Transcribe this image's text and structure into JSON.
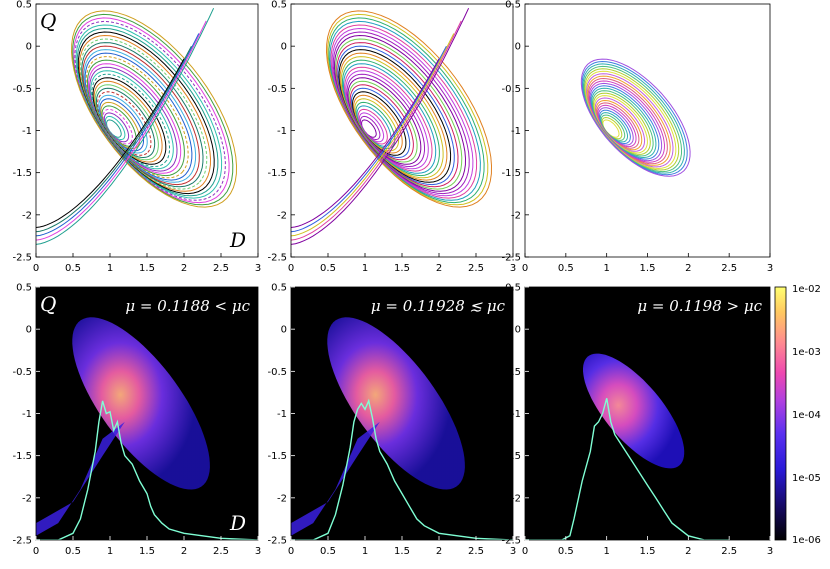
{
  "chart_data": {
    "type": "line",
    "description_axes": "Six panel grid of phase-plane plots, Q versus D",
    "panels": [
      {
        "id": "top-left",
        "row": 0,
        "col": 0,
        "kind": "orbits",
        "xlim": [
          0,
          3
        ],
        "ylim": [
          -2.5,
          0.5
        ],
        "ylabel": "Q",
        "xlabel": "D"
      },
      {
        "id": "top-middle",
        "row": 0,
        "col": 1,
        "kind": "orbits",
        "xlim": [
          0,
          3
        ],
        "ylim": [
          -2.5,
          0.5
        ]
      },
      {
        "id": "top-right",
        "row": 0,
        "col": 2,
        "kind": "orbits",
        "xlim": [
          0,
          3
        ],
        "ylim": [
          -2.5,
          0.5
        ]
      },
      {
        "id": "bottom-left",
        "row": 1,
        "col": 0,
        "kind": "density",
        "xlim": [
          0,
          3
        ],
        "ylim": [
          -2.5,
          0.5
        ],
        "ylabel": "Q",
        "xlabel": "D",
        "annotation": "μ = 0.1188 < μc"
      },
      {
        "id": "bottom-middle",
        "row": 1,
        "col": 1,
        "kind": "density",
        "xlim": [
          0,
          3
        ],
        "ylim": [
          -2.5,
          0.5
        ],
        "annotation": "μ = 0.11928 ≲ μc"
      },
      {
        "id": "bottom-right",
        "row": 1,
        "col": 2,
        "kind": "density",
        "xlim": [
          0,
          3
        ],
        "ylim": [
          -2.5,
          0.5
        ],
        "annotation": "μ = 0.1198 > μc"
      }
    ],
    "x_ticks": [
      "0",
      "0.5",
      "1",
      "1.5",
      "2",
      "2.5",
      "3"
    ],
    "x_tick_values": [
      0,
      0.5,
      1,
      1.5,
      2,
      2.5,
      3
    ],
    "y_ticks": [
      "0.5",
      "0",
      "-0.5",
      "-1",
      "-1.5",
      "-2",
      "-2.5"
    ],
    "y_tick_values": [
      0.5,
      0,
      -0.5,
      -1,
      -1.5,
      -2,
      -2.5
    ],
    "colorbar": {
      "scale": "log",
      "labels": [
        "1e-02",
        "1e-03",
        "1e-04",
        "1e-05",
        "1e-06"
      ],
      "range": [
        1e-06,
        0.01
      ],
      "colors": [
        "#000000",
        "#1a0a6b",
        "#3a22e6",
        "#8a3ef0",
        "#e040c8",
        "#ff7aa0",
        "#ffc060",
        "#ffff60"
      ]
    },
    "distribution_curves": [
      {
        "panel": "bottom-left",
        "color": "#7fffd4",
        "x": [
          0.0,
          0.3,
          0.5,
          0.6,
          0.7,
          0.8,
          0.85,
          0.9,
          0.95,
          1.0,
          1.05,
          1.1,
          1.15,
          1.2,
          1.3,
          1.4,
          1.5,
          1.55,
          1.6,
          1.7,
          1.8,
          2.0,
          2.5,
          3.0
        ],
        "y": [
          -2.5,
          -2.5,
          -2.42,
          -2.25,
          -1.9,
          -1.45,
          -1.1,
          -0.85,
          -1.0,
          -0.98,
          -1.2,
          -1.1,
          -1.35,
          -1.5,
          -1.6,
          -1.8,
          -1.95,
          -2.1,
          -2.2,
          -2.3,
          -2.37,
          -2.42,
          -2.48,
          -2.5
        ]
      },
      {
        "panel": "bottom-middle",
        "color": "#7fffd4",
        "x": [
          0.0,
          0.3,
          0.5,
          0.6,
          0.7,
          0.8,
          0.85,
          0.9,
          0.95,
          1.0,
          1.05,
          1.1,
          1.15,
          1.2,
          1.3,
          1.4,
          1.5,
          1.6,
          1.7,
          1.8,
          2.0,
          2.5,
          3.0
        ],
        "y": [
          -2.5,
          -2.5,
          -2.42,
          -2.2,
          -1.85,
          -1.4,
          -1.1,
          -0.95,
          -0.88,
          -0.95,
          -0.85,
          -1.05,
          -1.3,
          -1.45,
          -1.6,
          -1.8,
          -1.95,
          -2.1,
          -2.25,
          -2.33,
          -2.42,
          -2.48,
          -2.5
        ]
      },
      {
        "panel": "bottom-right",
        "color": "#7fffd4",
        "x": [
          0.0,
          0.45,
          0.55,
          0.6,
          0.7,
          0.8,
          0.85,
          0.9,
          0.95,
          1.0,
          1.05,
          1.1,
          1.2,
          1.3,
          1.4,
          1.5,
          1.6,
          1.7,
          1.8,
          2.0,
          2.2,
          2.5
        ],
        "y": [
          -2.5,
          -2.5,
          -2.45,
          -2.25,
          -1.8,
          -1.45,
          -1.15,
          -1.1,
          -1.0,
          -0.82,
          -1.1,
          -1.25,
          -1.4,
          -1.55,
          -1.7,
          -1.85,
          -2.0,
          -2.15,
          -2.3,
          -2.45,
          -2.5,
          -2.5
        ]
      }
    ]
  }
}
